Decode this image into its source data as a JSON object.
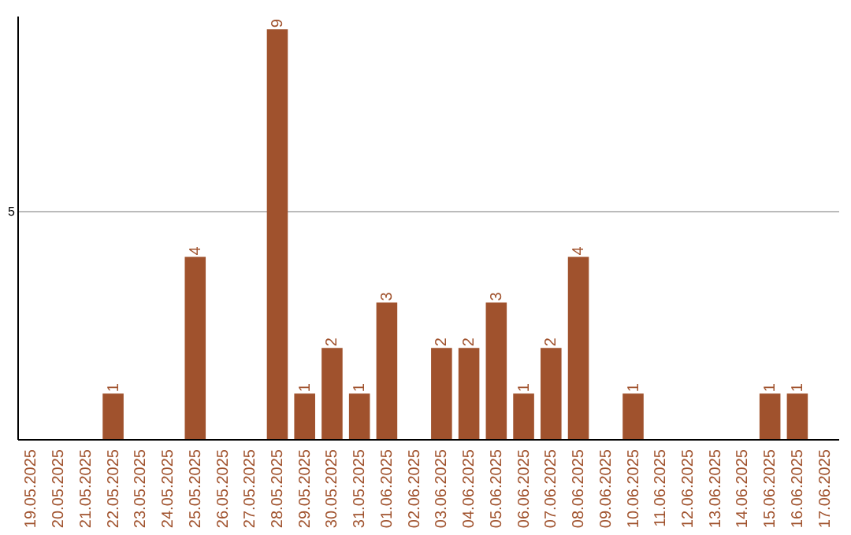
{
  "chart_data": {
    "type": "bar",
    "categories": [
      "19.05.2025",
      "20.05.2025",
      "21.05.2025",
      "22.05.2025",
      "23.05.2025",
      "24.05.2025",
      "25.05.2025",
      "26.05.2025",
      "27.05.2025",
      "28.05.2025",
      "29.05.2025",
      "30.05.2025",
      "31.05.2025",
      "01.06.2025",
      "02.06.2025",
      "03.06.2025",
      "04.06.2025",
      "05.06.2025",
      "06.06.2025",
      "07.06.2025",
      "08.06.2025",
      "09.06.2025",
      "10.06.2025",
      "11.06.2025",
      "12.06.2025",
      "13.06.2025",
      "14.06.2025",
      "15.06.2025",
      "16.06.2025",
      "17.06.2025"
    ],
    "values": [
      0,
      0,
      0,
      1,
      0,
      0,
      4,
      0,
      0,
      9,
      1,
      2,
      1,
      3,
      0,
      2,
      2,
      3,
      1,
      2,
      4,
      0,
      1,
      0,
      0,
      0,
      0,
      1,
      1,
      0
    ],
    "value_labels": [
      null,
      null,
      null,
      "1",
      null,
      null,
      "4",
      null,
      null,
      "9",
      "1",
      "2",
      "1",
      "3",
      null,
      "2",
      "2",
      "3",
      "1",
      "2",
      "4",
      null,
      "1",
      null,
      null,
      null,
      null,
      "1",
      "1",
      null
    ],
    "color": "#a0522d",
    "ylim": [
      0,
      9.3
    ],
    "yticks": [
      5
    ],
    "grid": "y"
  }
}
